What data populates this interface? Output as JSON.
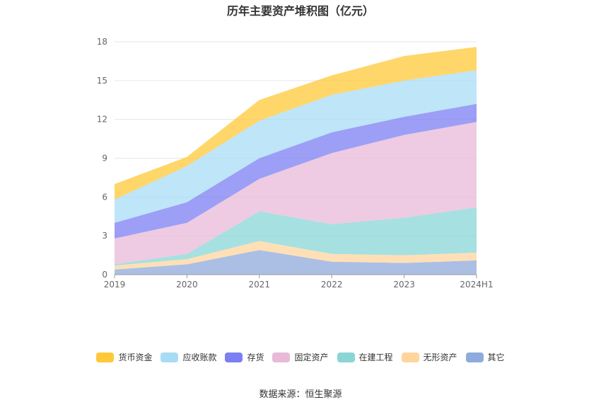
{
  "title": "历年主要资产堆积图（亿元）",
  "source": "数据来源：恒生聚源",
  "chart_data": {
    "type": "area",
    "stacked": true,
    "categories": [
      "2019",
      "2020",
      "2021",
      "2022",
      "2023",
      "2024H1"
    ],
    "ylim": [
      0,
      18
    ],
    "yticks": [
      0,
      3,
      6,
      9,
      12,
      15,
      18
    ],
    "grid": true,
    "legend_position": "bottom",
    "series": [
      {
        "name": "其它",
        "color": "#8faadc",
        "values": [
          0.4,
          0.8,
          1.9,
          1.0,
          0.9,
          1.1
        ]
      },
      {
        "name": "无形资产",
        "color": "#ffd59e",
        "values": [
          0.3,
          0.4,
          0.7,
          0.6,
          0.6,
          0.6
        ]
      },
      {
        "name": "在建工程",
        "color": "#8ad6d6",
        "values": [
          0.1,
          0.4,
          2.3,
          2.3,
          2.9,
          3.5
        ]
      },
      {
        "name": "固定资产",
        "color": "#e8b9d8",
        "values": [
          2.0,
          2.4,
          2.5,
          5.5,
          6.4,
          6.6
        ]
      },
      {
        "name": "存货",
        "color": "#7b7ff2",
        "values": [
          1.2,
          1.6,
          1.6,
          1.6,
          1.4,
          1.4
        ]
      },
      {
        "name": "应收账款",
        "color": "#a8dcf5",
        "values": [
          1.8,
          2.8,
          2.9,
          2.9,
          2.8,
          2.6
        ]
      },
      {
        "name": "货币资金",
        "color": "#ffc838",
        "values": [
          1.2,
          0.7,
          1.6,
          1.5,
          1.9,
          1.8
        ]
      }
    ],
    "legend_order": [
      "货币资金",
      "应收账款",
      "存货",
      "固定资产",
      "在建工程",
      "无形资产",
      "其它"
    ]
  }
}
